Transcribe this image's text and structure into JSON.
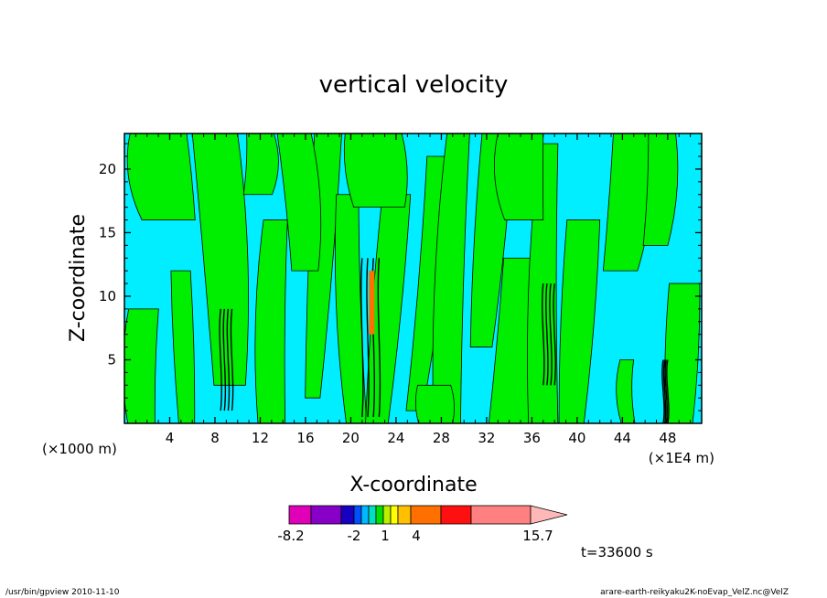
{
  "chart_data": {
    "type": "heatmap",
    "title": "vertical velocity",
    "xlabel": "X-coordinate",
    "ylabel": "Z-coordinate",
    "x_unit_left": "(×1000 m)",
    "x_unit_right": "(×1E4 m)",
    "xlim": [
      0,
      51
    ],
    "ylim": [
      0,
      22.8
    ],
    "x_ticks": [
      4,
      8,
      12,
      16,
      20,
      24,
      28,
      32,
      36,
      40,
      44,
      48
    ],
    "y_ticks": [
      5,
      10,
      15,
      20
    ],
    "grid": false,
    "time_label": "t=33600 s",
    "colorbar": {
      "tick_labels": [
        "-8.2",
        "-2",
        "1",
        "4",
        "15.7"
      ],
      "tick_values": [
        -8.2,
        -2,
        1,
        4,
        15.7
      ],
      "levels": [
        -8.2,
        -6.5,
        -4,
        -3,
        -2,
        -1,
        0,
        1,
        2,
        3,
        4,
        7,
        10,
        15.7
      ],
      "colors": [
        "#e000b8",
        "#8800c8",
        "#1800c0",
        "#0050ff",
        "#00b8ff",
        "#00e0c0",
        "#00e000",
        "#b8f000",
        "#ffff00",
        "#ffc000",
        "#ff7000",
        "#ff1010",
        "#ff8080"
      ],
      "arrow_color": "#ffb8b8"
    },
    "dominant_colors": {
      "positive_weak": "#00ee00",
      "negative_weak": "#00eeff"
    },
    "strong_updraft_columns_x": [
      9,
      21.5,
      37.5,
      47.8
    ]
  },
  "footer": {
    "left": "/usr/bin/gpview   2010-11-10",
    "right": "arare-earth-reikyaku2K-noEvap_VelZ.nc@VelZ"
  }
}
